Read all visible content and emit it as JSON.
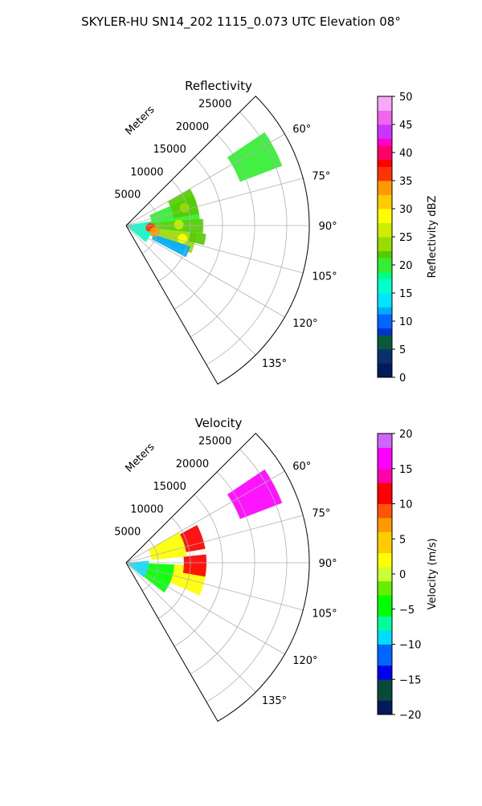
{
  "figure_title": "SKYLER-HU  SN14_202  1115_0.073 UTC Elevation 08°",
  "chart_data": [
    {
      "type": "heatmap",
      "projection": "polar-sector",
      "title": "Reflectivity",
      "range_label": "Meters",
      "range_ticks": [
        5000,
        10000,
        15000,
        20000,
        25000
      ],
      "range_tick_labels": [
        "5000",
        "10000",
        "15000",
        "20000",
        "25000"
      ],
      "range_max": 28500,
      "azimuth_range": [
        45,
        150
      ],
      "azimuth_ticks": [
        60,
        75,
        90,
        105,
        120,
        135
      ],
      "azimuth_tick_labels": [
        "60°",
        "75°",
        "90°",
        "105°",
        "120°",
        "135°"
      ],
      "grid": true,
      "colorbar": {
        "label": "Reflectivity dBZ",
        "min": 0,
        "max": 50,
        "ticks": [
          0,
          5,
          10,
          15,
          20,
          25,
          30,
          35,
          40,
          45,
          50
        ],
        "tick_labels": [
          "0",
          "5",
          "10",
          "15",
          "20",
          "25",
          "30",
          "35",
          "40",
          "45",
          "50"
        ],
        "colormap": "pyart_NWSRef"
      },
      "echo_regions": [
        {
          "azimuth": [
            80,
            130
          ],
          "range": [
            0,
            4000
          ],
          "value": 16
        },
        {
          "azimuth": [
            66,
            86
          ],
          "range": [
            4000,
            11500
          ],
          "value": 19
        },
        {
          "azimuth": [
            60,
            81
          ],
          "range": [
            7500,
            11500
          ],
          "value": 21
        },
        {
          "azimuth": [
            85,
            96
          ],
          "range": [
            4000,
            12000
          ],
          "value": 22
        },
        {
          "azimuth": [
            96,
            113
          ],
          "range": [
            4000,
            11000
          ],
          "value": 23
        },
        {
          "azimuth": [
            96,
            104
          ],
          "range": [
            10000,
            12500
          ],
          "value": 21
        },
        {
          "azimuth": [
            56,
            69
          ],
          "range": [
            19000,
            26000
          ],
          "value": 20
        },
        {
          "azimuth": [
            108,
            118
          ],
          "range": [
            4500,
            10500
          ],
          "value": 12
        }
      ],
      "cores": [
        {
          "azimuth": 95,
          "range": 3800,
          "value": 35
        },
        {
          "azimuth": 102,
          "range": 4600,
          "value": 33
        },
        {
          "azimuth": 89,
          "range": 8200,
          "value": 26
        },
        {
          "azimuth": 103,
          "range": 9000,
          "value": 27
        },
        {
          "azimuth": 73,
          "range": 9500,
          "value": 24
        }
      ]
    },
    {
      "type": "heatmap",
      "projection": "polar-sector",
      "title": "Velocity",
      "range_label": "Meters",
      "range_ticks": [
        5000,
        10000,
        15000,
        20000,
        25000
      ],
      "range_tick_labels": [
        "5000",
        "10000",
        "15000",
        "20000",
        "25000"
      ],
      "range_max": 28500,
      "azimuth_range": [
        45,
        150
      ],
      "azimuth_ticks": [
        60,
        75,
        90,
        105,
        120,
        135
      ],
      "azimuth_tick_labels": [
        "60°",
        "75°",
        "90°",
        "105°",
        "120°",
        "135°"
      ],
      "grid": true,
      "colorbar": {
        "label": "Velocity (m/s)",
        "min": -20,
        "max": 20,
        "ticks": [
          -20,
          -15,
          -10,
          -5,
          0,
          5,
          10,
          15,
          20
        ],
        "tick_labels": [
          "−20",
          "−15",
          "−10",
          "−5",
          "0",
          "5",
          "10",
          "15",
          "20"
        ],
        "colormap": "pyart_BuDRd18"
      },
      "echo_regions": [
        {
          "azimuth": [
            85,
            130
          ],
          "range": [
            0,
            3500
          ],
          "value": -9
        },
        {
          "azimuth": [
            92,
            128
          ],
          "range": [
            3500,
            7500
          ],
          "value": -4
        },
        {
          "azimuth": [
            92,
            114
          ],
          "range": [
            7500,
            12500
          ],
          "value": 2
        },
        {
          "azimuth": [
            84,
            100
          ],
          "range": [
            9000,
            12500
          ],
          "value": 11
        },
        {
          "azimuth": [
            60,
            84
          ],
          "range": [
            4000,
            9500
          ],
          "value": 3
        },
        {
          "azimuth": [
            62,
            80
          ],
          "range": [
            9500,
            12500
          ],
          "value": 11
        },
        {
          "azimuth": [
            56,
            69
          ],
          "range": [
            19000,
            26000
          ],
          "value": 16
        }
      ]
    }
  ]
}
